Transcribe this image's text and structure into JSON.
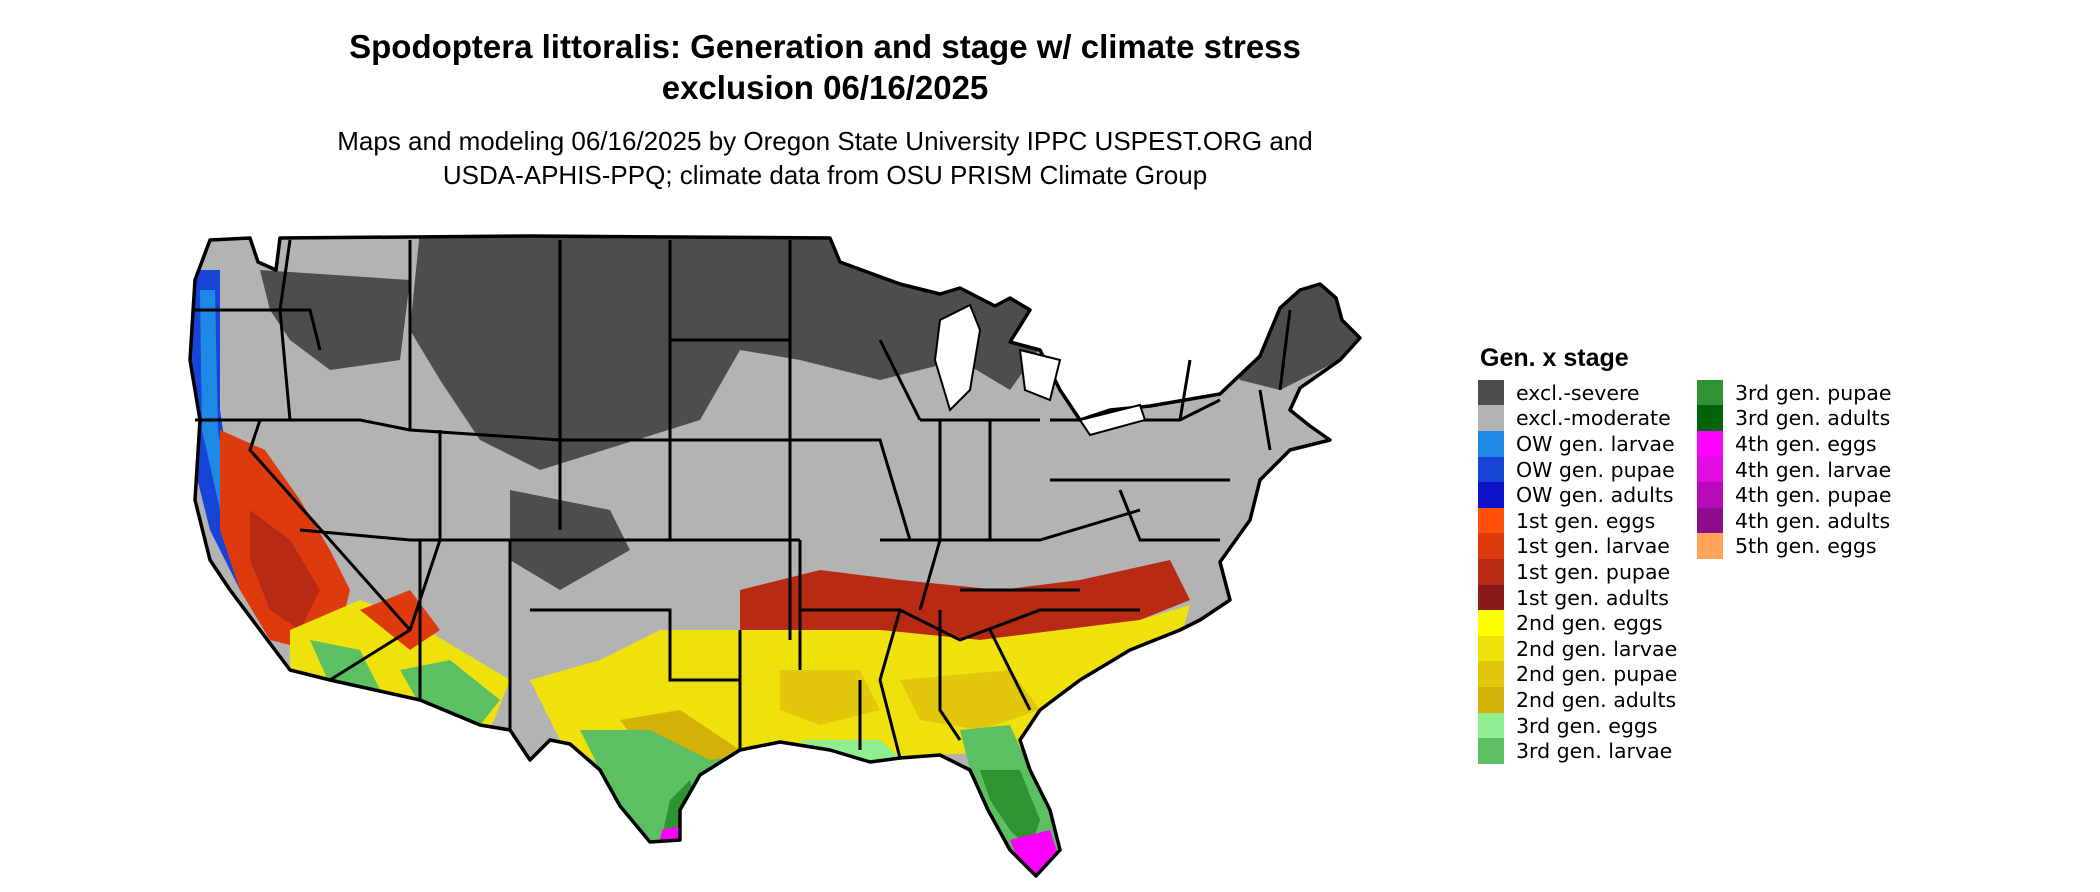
{
  "title": {
    "line1": "Spodoptera littoralis: Generation and stage w/ climate stress",
    "line2": "exclusion 06/16/2025"
  },
  "subtitle": {
    "line1": "Maps and modeling 06/16/2025 by Oregon State University IPPC USPEST.ORG and",
    "line2": "USDA-APHIS-PPQ; climate data from OSU PRISM Climate Group"
  },
  "legend": {
    "title": "Gen. x stage",
    "column1": [
      {
        "label": "excl.-severe",
        "color": "#4d4d4d"
      },
      {
        "label": "excl.-moderate",
        "color": "#b3b3b3"
      },
      {
        "label": "OW gen. larvae",
        "color": "#1e88e5"
      },
      {
        "label": "OW gen. pupae",
        "color": "#1744d6"
      },
      {
        "label": "OW gen. adults",
        "color": "#0d11c8"
      },
      {
        "label": "1st gen. eggs",
        "color": "#ff4f0a"
      },
      {
        "label": "1st gen. larvae",
        "color": "#df3a0e"
      },
      {
        "label": "1st gen. pupae",
        "color": "#b82a14"
      },
      {
        "label": "1st gen. adults",
        "color": "#8b1a1a"
      },
      {
        "label": "2nd gen. eggs",
        "color": "#ffff00"
      },
      {
        "label": "2nd gen. larvae",
        "color": "#efe10c"
      },
      {
        "label": "2nd gen. pupae",
        "color": "#e2c70d"
      },
      {
        "label": "2nd gen. adults",
        "color": "#d4b106"
      },
      {
        "label": "3rd gen. eggs",
        "color": "#90ee90"
      },
      {
        "label": "3rd gen. larvae",
        "color": "#5cc062"
      }
    ],
    "column2": [
      {
        "label": "3rd gen. pupae",
        "color": "#2e9330"
      },
      {
        "label": "3rd gen. adults",
        "color": "#00640b"
      },
      {
        "label": "4th gen. eggs",
        "color": "#ff00ff"
      },
      {
        "label": "4th gen. larvae",
        "color": "#e00ce0"
      },
      {
        "label": "4th gen. pupae",
        "color": "#b70bb7"
      },
      {
        "label": "4th gen. adults",
        "color": "#8e0c8e"
      },
      {
        "label": "5th gen. eggs",
        "color": "#ffa25a"
      }
    ]
  }
}
